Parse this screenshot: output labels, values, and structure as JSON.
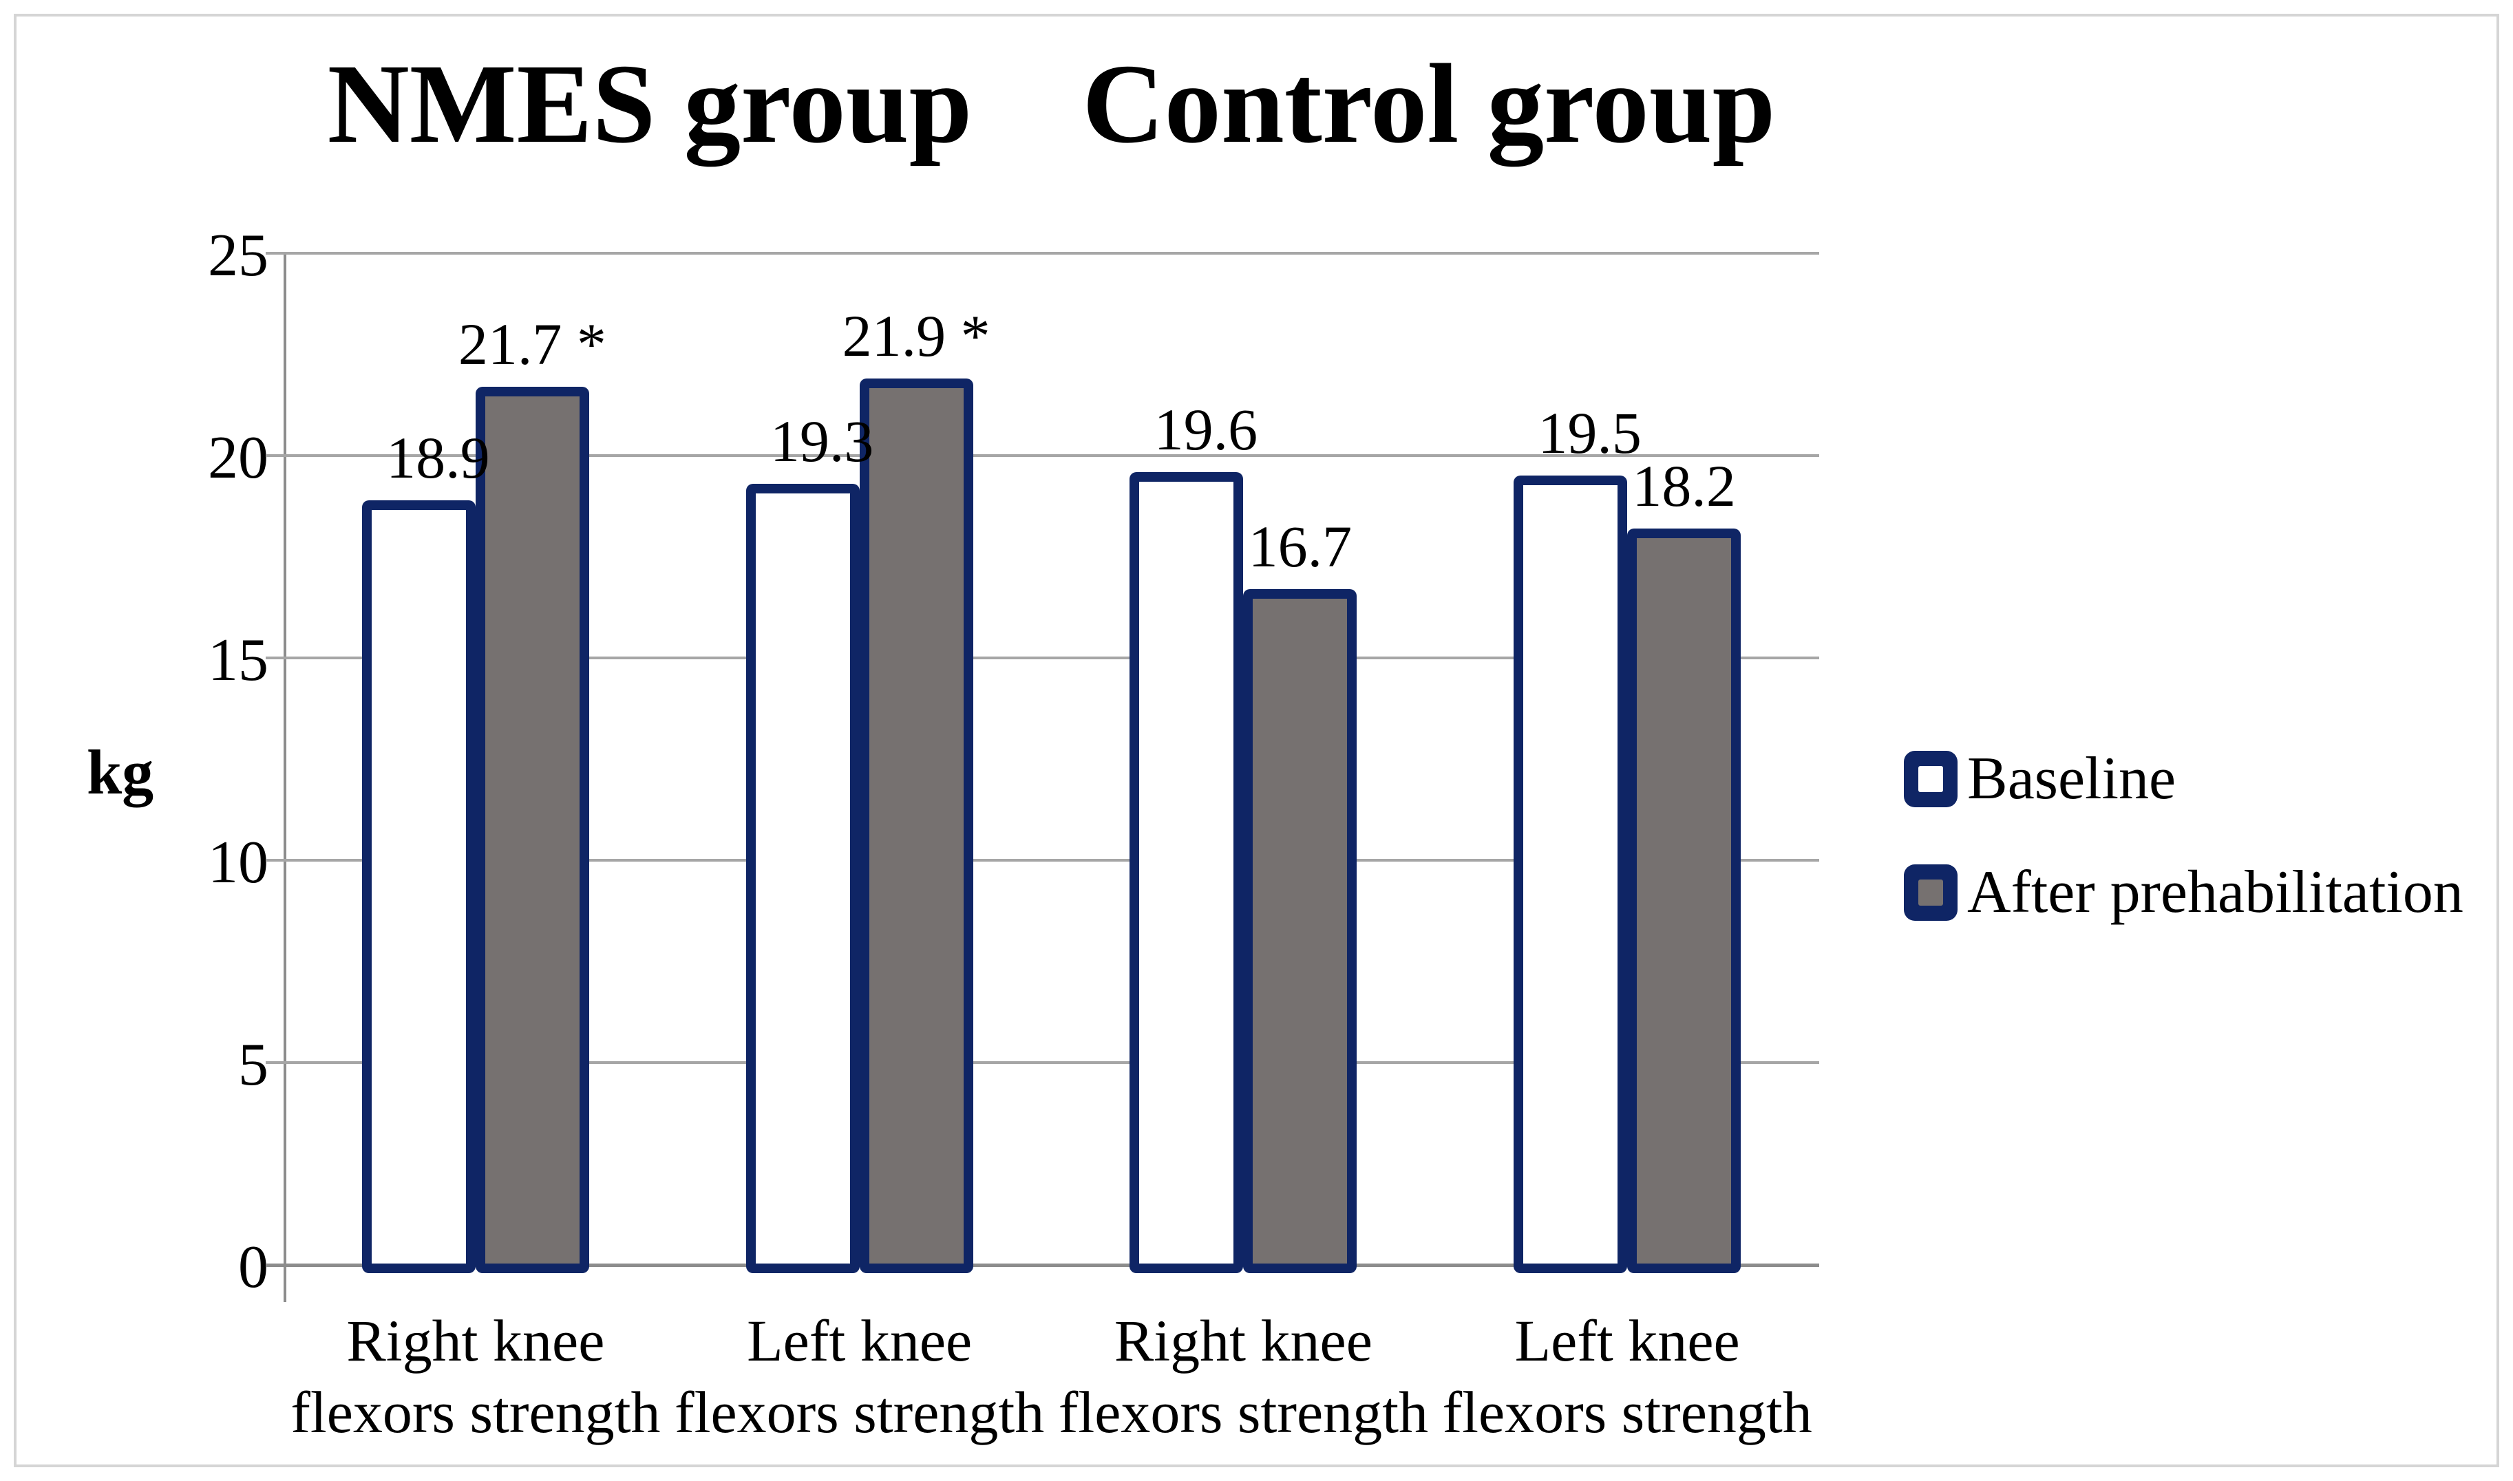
{
  "title": {
    "part1": "NMES group",
    "part2": "Control group"
  },
  "y_axis": {
    "unit_label": "kg",
    "tick_labels": [
      "25",
      "20",
      "15",
      "10",
      "5",
      "0"
    ],
    "tick_values": [
      25,
      20,
      15,
      10,
      5,
      0
    ]
  },
  "legend": {
    "items": [
      {
        "label": "Baseline",
        "fill": "#ffffff"
      },
      {
        "label": "After prehabilitation",
        "fill": "#767170"
      }
    ]
  },
  "chart_data": {
    "type": "bar",
    "categories": [
      "Right knee flexors strength",
      "Left knee flexors strength",
      "Right knee flexors strength",
      "Left knee flexors strength"
    ],
    "category_display_lines": [
      [
        "Right knee",
        "flexors strength"
      ],
      [
        "Left knee",
        "flexors strength"
      ],
      [
        "Right knee",
        "flexors strength"
      ],
      [
        "Left knee",
        "flexors strength"
      ]
    ],
    "group_headers": [
      "NMES group",
      "Control group"
    ],
    "series": [
      {
        "name": "Baseline",
        "values": [
          18.9,
          19.3,
          19.6,
          19.5
        ],
        "data_labels": [
          "18.9",
          "19.3",
          "19.6",
          "19.5"
        ],
        "fill": "#ffffff"
      },
      {
        "name": "After prehabilitation",
        "values": [
          21.7,
          21.9,
          16.7,
          18.2
        ],
        "data_labels": [
          "21.7 *",
          "21.9 *",
          "16.7",
          "18.2"
        ],
        "fill": "#767170"
      }
    ],
    "ylabel": "kg",
    "ylim": [
      0,
      25
    ],
    "ytick_step": 5,
    "grid": true,
    "legend_position": "right",
    "bar_border_color": "#0f2565"
  },
  "colors": {
    "bar_border": "#0f2565",
    "after_fill": "#767170",
    "baseline_fill": "#ffffff",
    "gridline": "#a6a6a6",
    "axis_line": "#8c8c8c",
    "frame_border": "#d5d5d5",
    "text": "#000000"
  }
}
